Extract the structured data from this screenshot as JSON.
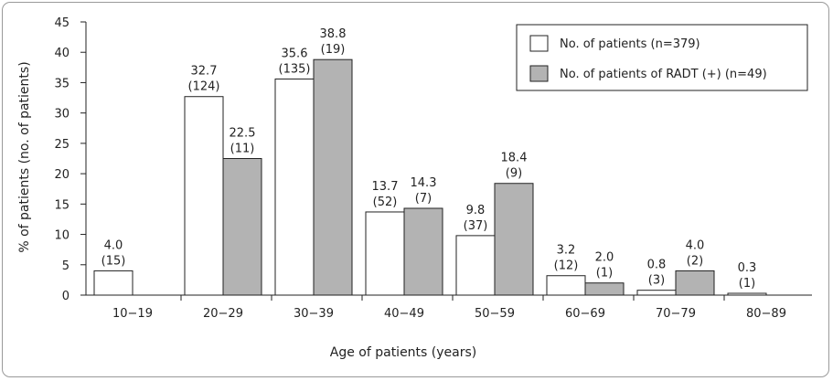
{
  "chart_data": {
    "type": "bar",
    "xlabel": "Age of patients (years)",
    "ylabel": "% of patients (no. of patients)",
    "ylim": [
      0,
      45
    ],
    "yticks": [
      "0",
      "5",
      "10",
      "15",
      "20",
      "25",
      "30",
      "35",
      "40",
      "45"
    ],
    "categories": [
      "10−19",
      "20−29",
      "30−39",
      "40−49",
      "50−59",
      "60−69",
      "70−79",
      "80−89"
    ],
    "series": [
      {
        "name": "No. of patients (n=379)",
        "color": "#ffffff",
        "values": [
          4.0,
          32.7,
          35.6,
          13.7,
          9.8,
          3.2,
          0.8,
          0.3
        ],
        "value_labels": [
          "4.0",
          "32.7",
          "35.6",
          "13.7",
          "9.8",
          "3.2",
          "0.8",
          "0.3"
        ],
        "counts": [
          "(15)",
          "(124)",
          "(135)",
          "(52)",
          "(37)",
          "(12)",
          "(3)",
          "(1)"
        ]
      },
      {
        "name": "No. of patients of RADT (+) (n=49)",
        "color": "#b3b3b3",
        "values": [
          null,
          22.5,
          38.8,
          14.3,
          18.4,
          2.0,
          4.0,
          null
        ],
        "value_labels": [
          "",
          "22.5",
          "38.8",
          "14.3",
          "18.4",
          "2.0",
          "4.0",
          ""
        ],
        "counts": [
          "",
          "(11)",
          "(19)",
          "(7)",
          "(9)",
          "(1)",
          "(2)",
          ""
        ]
      }
    ],
    "grid": false,
    "legend_position": "top-right"
  }
}
